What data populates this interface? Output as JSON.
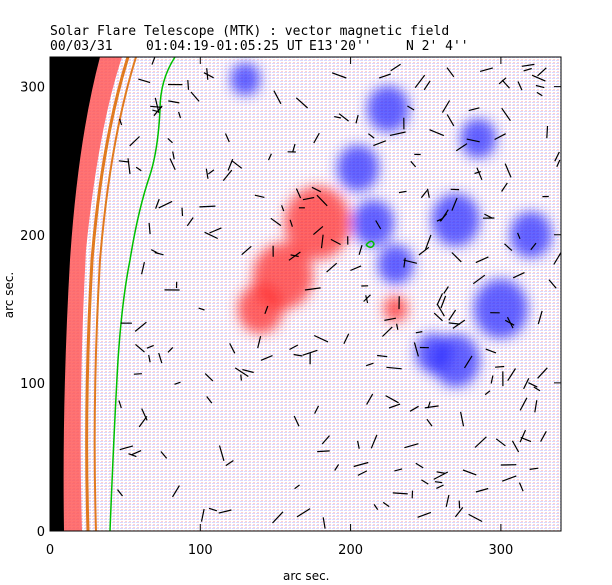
{
  "header": {
    "title": "Solar Flare Telescope (MTK) : vector magnetic field",
    "date": "00/03/31",
    "time_range": "01:04:19-01:05:25 UT",
    "longitude": "E13'20''",
    "latitude": "N 2' 4''"
  },
  "chart_data": {
    "type": "heatmap",
    "title": "Solar Flare Telescope (MTK) : vector magnetic field",
    "xlabel": "arc sec.",
    "ylabel": "arc sec.",
    "xlim": [
      0,
      340
    ],
    "ylim": [
      0,
      320
    ],
    "x_ticks": [
      0,
      100,
      200,
      300
    ],
    "y_ticks": [
      0,
      100,
      200,
      300
    ],
    "colors": {
      "positive": "#ff3030",
      "negative": "#3030ff",
      "limb": "#000000",
      "contour": "#00c000",
      "vector": "#000000"
    },
    "regions": [
      {
        "name": "positive",
        "x": 178,
        "y": 208,
        "r": 22
      },
      {
        "name": "positive",
        "x": 155,
        "y": 172,
        "r": 20
      },
      {
        "name": "positive",
        "x": 140,
        "y": 150,
        "r": 15
      },
      {
        "name": "positive",
        "x": 230,
        "y": 150,
        "r": 8
      },
      {
        "name": "negative",
        "x": 215,
        "y": 208,
        "r": 14
      },
      {
        "name": "negative",
        "x": 205,
        "y": 245,
        "r": 14
      },
      {
        "name": "negative",
        "x": 230,
        "y": 180,
        "r": 12
      },
      {
        "name": "negative",
        "x": 225,
        "y": 285,
        "r": 14
      },
      {
        "name": "negative",
        "x": 270,
        "y": 115,
        "r": 16
      },
      {
        "name": "negative",
        "x": 255,
        "y": 120,
        "r": 12
      },
      {
        "name": "negative",
        "x": 300,
        "y": 150,
        "r": 18
      },
      {
        "name": "negative",
        "x": 270,
        "y": 210,
        "r": 16
      },
      {
        "name": "negative",
        "x": 320,
        "y": 200,
        "r": 14
      },
      {
        "name": "negative",
        "x": 130,
        "y": 305,
        "r": 10
      },
      {
        "name": "negative",
        "x": 285,
        "y": 265,
        "r": 12
      }
    ]
  }
}
